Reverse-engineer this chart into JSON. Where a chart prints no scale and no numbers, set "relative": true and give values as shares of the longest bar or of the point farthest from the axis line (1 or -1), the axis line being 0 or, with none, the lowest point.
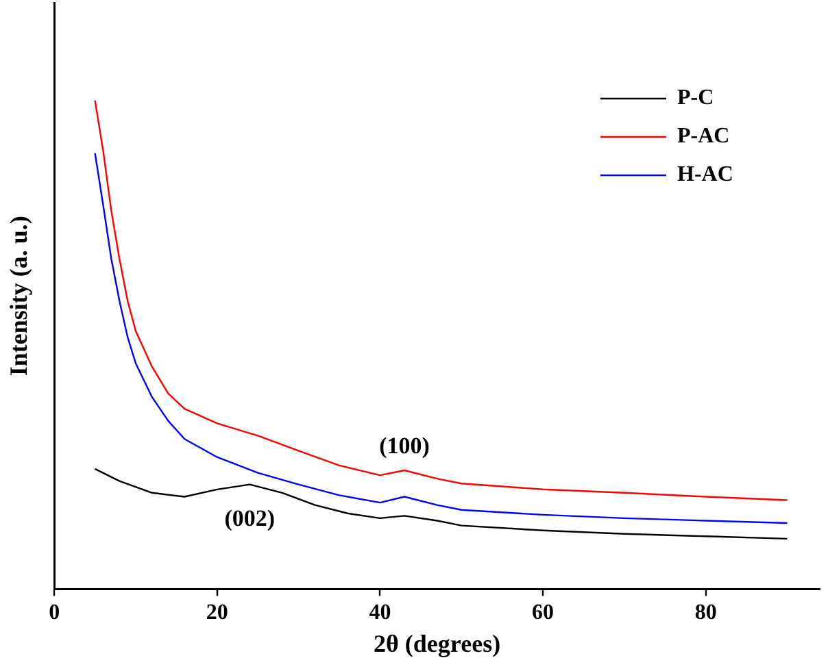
{
  "chart_data": {
    "type": "line",
    "relative": true,
    "xlabel": "2θ (degrees)",
    "ylabel": "Intensity (a. u.)",
    "xlim": [
      0,
      94
    ],
    "xticks": [
      0,
      20,
      40,
      60,
      80
    ],
    "legend": "top right",
    "grid": false,
    "marker": "none",
    "line_style": "solid",
    "annotations": [
      {
        "text": "(100)",
        "x": 43,
        "y": 0.243
      },
      {
        "text": "(002)",
        "x": 24,
        "y": 0.214
      }
    ],
    "series": [
      {
        "name": "P-C",
        "color": "#000000",
        "x": [
          5,
          8,
          12,
          16,
          20,
          24,
          28,
          32,
          36,
          40,
          43,
          47,
          50,
          60,
          70,
          80,
          90
        ],
        "values": [
          0.246,
          0.221,
          0.197,
          0.189,
          0.204,
          0.214,
          0.197,
          0.172,
          0.155,
          0.145,
          0.15,
          0.14,
          0.13,
          0.12,
          0.113,
          0.108,
          0.103
        ]
      },
      {
        "name": "P-AC",
        "color": "#ff0000",
        "x": [
          5,
          6,
          7,
          8,
          9,
          10,
          12,
          14,
          16,
          20,
          25,
          30,
          35,
          40,
          43,
          47,
          50,
          60,
          70,
          80,
          90
        ],
        "values": [
          1.0,
          0.897,
          0.774,
          0.676,
          0.59,
          0.528,
          0.455,
          0.4,
          0.369,
          0.339,
          0.314,
          0.283,
          0.253,
          0.233,
          0.243,
          0.226,
          0.216,
          0.204,
          0.197,
          0.189,
          0.182
        ]
      },
      {
        "name": "H-AC",
        "color": "#0000ff",
        "x": [
          5,
          6,
          7,
          8,
          9,
          10,
          12,
          14,
          16,
          20,
          25,
          30,
          35,
          40,
          43,
          47,
          50,
          60,
          70,
          80,
          90
        ],
        "values": [
          0.892,
          0.786,
          0.676,
          0.59,
          0.516,
          0.462,
          0.393,
          0.344,
          0.307,
          0.27,
          0.238,
          0.214,
          0.192,
          0.177,
          0.189,
          0.172,
          0.162,
          0.152,
          0.145,
          0.14,
          0.135
        ]
      }
    ]
  }
}
